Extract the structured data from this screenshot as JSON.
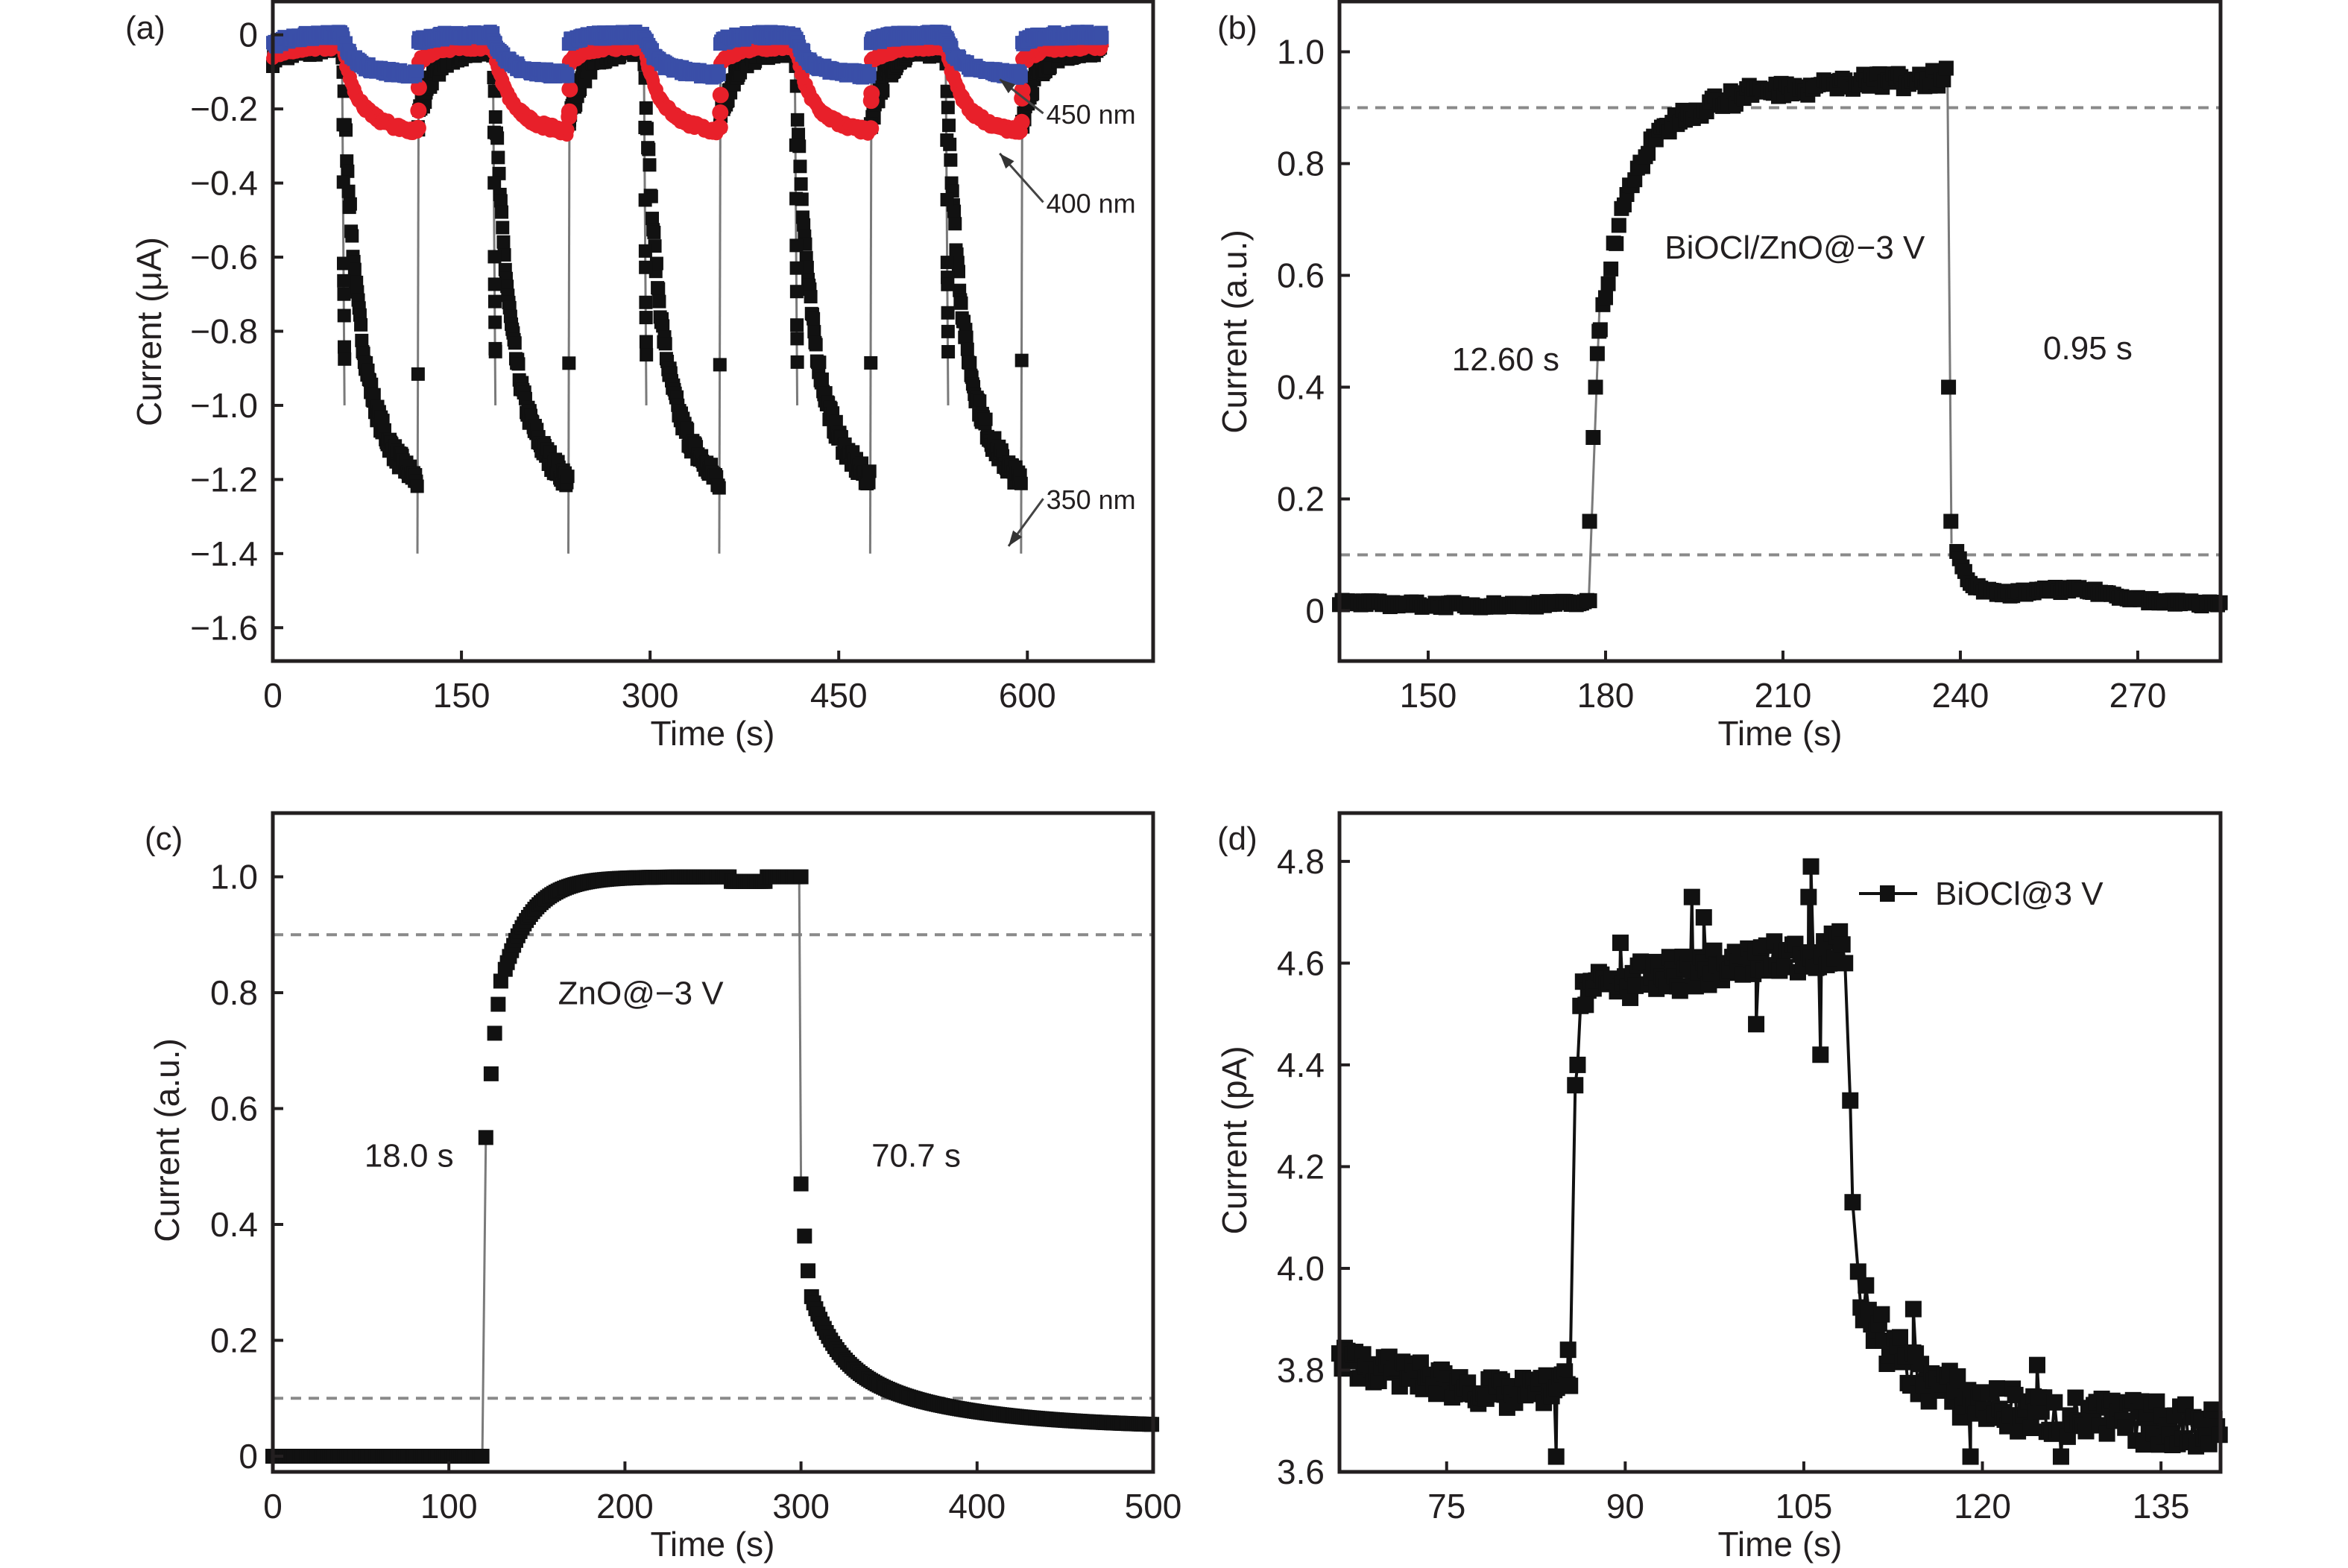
{
  "chart_data": [
    {
      "id": "a",
      "type": "scatter",
      "panel_label": "(a)",
      "xlabel": "Time (s)",
      "ylabel": "Current (μA)",
      "xlim": [
        0,
        700
      ],
      "ylim": [
        -1.69,
        0.09
      ],
      "xticks": [
        0,
        150,
        300,
        450,
        600
      ],
      "yticks": [
        0,
        -0.2,
        -0.4,
        -0.6,
        -0.8,
        -1.0,
        -1.2,
        -1.4,
        -1.6
      ],
      "ytick_labels": [
        "0",
        "−0.2",
        "−0.4",
        "−0.6",
        "−0.8",
        "−1.0",
        "−1.2",
        "−1.4",
        "−1.6"
      ],
      "cycles": {
        "on_times": [
          55,
          175,
          295,
          415,
          535
        ],
        "off_times": [
          115,
          235,
          355,
          475,
          595
        ],
        "end_time": 660
      },
      "series": [
        {
          "name": "350 nm",
          "color": "#111111",
          "marker": "square",
          "dark_level": -0.03,
          "light_saturation": -1.45,
          "first_points": [
            -0.27,
            -0.42,
            -0.59,
            -0.65,
            -0.7,
            -0.76,
            -0.82,
            -0.88
          ],
          "recovery_points": [
            -0.9,
            -0.25
          ]
        },
        {
          "name": "400 nm",
          "color": "#e8202a",
          "marker": "circle",
          "dark_level": -0.03,
          "light_saturation": -0.31,
          "recovery_points": [
            -0.24,
            -0.2,
            -0.15
          ]
        },
        {
          "name": "450 nm",
          "color": "#3a4fa8",
          "marker": "square",
          "dark_level": 0.0,
          "light_saturation": -0.13
        }
      ],
      "annotations": [
        {
          "text": "450 nm",
          "x": 615,
          "y": -0.24,
          "arrow_to": [
            578,
            -0.12
          ]
        },
        {
          "text": "400 nm",
          "x": 615,
          "y": -0.48,
          "arrow_to": [
            578,
            -0.32
          ]
        },
        {
          "text": "350 nm",
          "x": 615,
          "y": -1.28,
          "arrow_to": [
            585,
            -1.38
          ]
        }
      ]
    },
    {
      "id": "b",
      "type": "scatter",
      "panel_label": "(b)",
      "xlabel": "Time (s)",
      "ylabel": "Current (a.u.)",
      "xlim": [
        135,
        284
      ],
      "ylim": [
        -0.09,
        1.09
      ],
      "xticks": [
        150,
        180,
        210,
        240,
        270
      ],
      "yticks": [
        0,
        0.2,
        0.4,
        0.6,
        0.8,
        1.0
      ],
      "ytick_labels": [
        "0",
        "0.2",
        "0.4",
        "0.6",
        "0.8",
        "1.0"
      ],
      "reference_lines": [
        0.1,
        0.9
      ],
      "series": [
        {
          "name": "BiOCl/ZnO@−3 V",
          "color": "#111111",
          "marker": "square",
          "light_on": 177.5,
          "light_off": 238,
          "rise_points": [
            [
              177.3,
              0.16
            ],
            [
              177.9,
              0.31
            ],
            [
              178.3,
              0.4
            ],
            [
              178.6,
              0.46
            ],
            [
              178.9,
              0.5
            ]
          ],
          "fall_points": [
            [
              238.0,
              0.4
            ],
            [
              238.4,
              0.16
            ]
          ],
          "plateau_end": 0.98,
          "dark_end": 0.01
        }
      ],
      "annotations": [
        {
          "text": "BiOCl/ZnO@−3 V",
          "x": 190,
          "y": 0.63
        },
        {
          "text": "12.60 s",
          "x": 154,
          "y": 0.43
        },
        {
          "text": "0.95 s",
          "x": 254,
          "y": 0.45
        }
      ]
    },
    {
      "id": "c",
      "type": "scatter",
      "panel_label": "(c)",
      "xlabel": "Time (s)",
      "ylabel": "Current (a.u.)",
      "xlim": [
        0,
        500
      ],
      "ylim": [
        -0.027,
        1.11
      ],
      "xticks": [
        0,
        100,
        200,
        300,
        400,
        500
      ],
      "yticks": [
        0,
        0.2,
        0.4,
        0.6,
        0.8,
        1.0
      ],
      "ytick_labels": [
        "0",
        "0.2",
        "0.4",
        "0.6",
        "0.8",
        "1.0"
      ],
      "reference_lines": [
        0.1,
        0.9
      ],
      "series": [
        {
          "name": "ZnO@−3 V",
          "color": "#111111",
          "marker": "square",
          "light_on": 120,
          "light_off": 300,
          "rise_points": [
            [
              121,
              0.55
            ],
            [
              124,
              0.66
            ],
            [
              126,
              0.73
            ],
            [
              128,
              0.78
            ],
            [
              129.5,
              0.82
            ]
          ],
          "fall_points": [
            [
              300,
              0.47
            ],
            [
              302,
              0.38
            ],
            [
              304,
              0.32
            ]
          ],
          "final_value": 0.045
        }
      ],
      "annotations": [
        {
          "text": "ZnO@−3 V",
          "x": 162,
          "y": 0.78
        },
        {
          "text": "18.0 s",
          "x": 52,
          "y": 0.5
        },
        {
          "text": "70.7 s",
          "x": 340,
          "y": 0.5
        }
      ]
    },
    {
      "id": "d",
      "type": "scatter",
      "panel_label": "(d)",
      "xlabel": "Time (s)",
      "ylabel": "Current (pA)",
      "xlim": [
        66,
        140
      ],
      "ylim": [
        3.6,
        4.895
      ],
      "xticks": [
        75,
        90,
        105,
        120,
        135
      ],
      "yticks": [
        3.6,
        3.8,
        4.0,
        4.2,
        4.4,
        4.6,
        4.8
      ],
      "ytick_labels": [
        "3.6",
        "3.8",
        "4.0",
        "4.2",
        "4.4",
        "4.6",
        "4.8"
      ],
      "legend": {
        "label": "BiOCl@3 V",
        "position": "top-right"
      },
      "series": [
        {
          "name": "BiOCl@3 V",
          "color": "#111111",
          "marker": "square",
          "light_on": 85.5,
          "light_off": 108.5,
          "dark_start": 3.82,
          "dark_before_on": 3.75,
          "on_level_start": 4.55,
          "on_level_end": 4.63,
          "off_end": 3.68,
          "outliers": [
            [
              84.2,
              3.63
            ],
            [
              85.2,
              3.84
            ],
            [
              85.8,
              4.36
            ],
            [
              86.0,
              4.4
            ],
            [
              89.6,
              4.64
            ],
            [
              95.6,
              4.73
            ],
            [
              96.6,
              4.69
            ],
            [
              101.0,
              4.48
            ],
            [
              105.6,
              4.79
            ],
            [
              105.4,
              4.73
            ],
            [
              106.4,
              4.42
            ],
            [
              108.9,
              4.33
            ],
            [
              109.1,
              4.13
            ],
            [
              114.2,
              3.92
            ],
            [
              119.0,
              3.63
            ],
            [
              124.6,
              3.81
            ],
            [
              126.6,
              3.63
            ]
          ]
        }
      ]
    }
  ]
}
